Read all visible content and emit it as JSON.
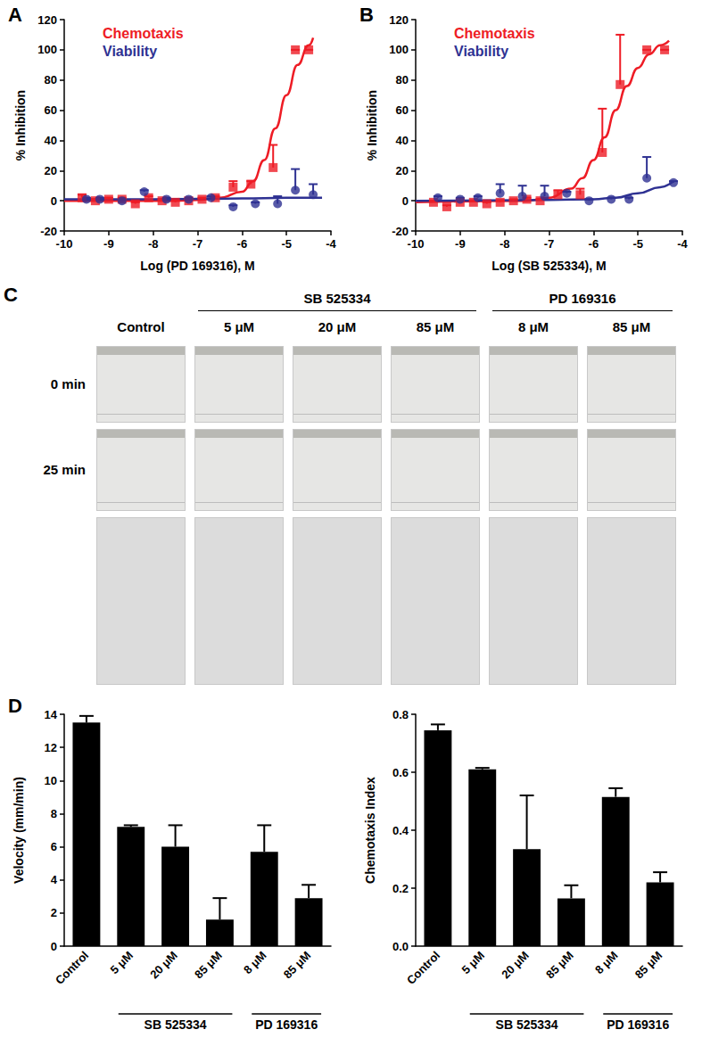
{
  "chart_data": [
    {
      "panel_label": "A",
      "type": "scatter",
      "x_label": "Log (PD 169316), M",
      "y_label": "% Inhibition",
      "xlim": [
        -10,
        -4
      ],
      "xticks": [
        -10,
        -9,
        -8,
        -7,
        -6,
        -5,
        -4
      ],
      "ylim": [
        -20,
        120
      ],
      "yticks": [
        -20,
        0,
        20,
        40,
        60,
        80,
        100,
        120
      ],
      "grid": false,
      "legend": "top-left",
      "series": [
        {
          "name": "Chemotaxis",
          "color": "#ee1c25",
          "marker": "square",
          "x": [
            -9.6,
            -9.3,
            -9.0,
            -8.7,
            -8.4,
            -8.1,
            -7.8,
            -7.5,
            -7.2,
            -6.9,
            -6.6,
            -6.2,
            -5.8,
            -5.3,
            -4.8,
            -4.5
          ],
          "values": [
            2,
            0,
            1,
            1,
            -2,
            2,
            0,
            -1,
            0,
            1,
            2,
            9,
            11,
            22,
            100,
            100
          ],
          "error": [
            2,
            1,
            1,
            1,
            1,
            1,
            1,
            1,
            1,
            1,
            1,
            4,
            2,
            15,
            0,
            0
          ],
          "fit": [
            [
              -10,
              0
            ],
            [
              -7.5,
              0
            ],
            [
              -7,
              0.5
            ],
            [
              -6.5,
              2
            ],
            [
              -6,
              6
            ],
            [
              -5.75,
              13
            ],
            [
              -5.5,
              27
            ],
            [
              -5.25,
              48
            ],
            [
              -5,
              70
            ],
            [
              -4.75,
              90
            ],
            [
              -4.5,
              103
            ],
            [
              -4.4,
              108
            ]
          ]
        },
        {
          "name": "Viability",
          "color": "#2e3192",
          "marker": "circle",
          "x": [
            -9.5,
            -9.2,
            -8.7,
            -8.2,
            -7.7,
            -7.2,
            -6.7,
            -6.2,
            -5.7,
            -5.2,
            -4.8,
            -4.4
          ],
          "values": [
            1,
            1,
            0,
            6,
            1,
            1,
            2,
            -4,
            -2,
            -2,
            7,
            4
          ],
          "error": [
            1,
            1,
            1,
            1,
            1,
            1,
            1,
            1,
            1,
            5,
            14,
            7
          ],
          "fit": [
            [
              -10,
              1
            ],
            [
              -8,
              1
            ],
            [
              -6,
              1.5
            ],
            [
              -5,
              2
            ],
            [
              -4.2,
              2
            ]
          ]
        }
      ]
    },
    {
      "panel_label": "B",
      "type": "scatter",
      "x_label": "Log (SB 525334), M",
      "y_label": "% Inhibition",
      "xlim": [
        -10,
        -4
      ],
      "xticks": [
        -10,
        -9,
        -8,
        -7,
        -6,
        -5,
        -4
      ],
      "ylim": [
        -20,
        120
      ],
      "yticks": [
        -20,
        0,
        20,
        40,
        60,
        80,
        100,
        120
      ],
      "grid": false,
      "legend": "top-left",
      "series": [
        {
          "name": "Chemotaxis",
          "color": "#ee1c25",
          "marker": "square",
          "x": [
            -9.6,
            -9.3,
            -9.0,
            -8.7,
            -8.4,
            -8.1,
            -7.8,
            -7.5,
            -7.2,
            -6.8,
            -6.3,
            -5.8,
            -5.4,
            -4.8,
            -4.4
          ],
          "values": [
            -1,
            -4,
            -1,
            -1,
            -2,
            -1,
            0,
            1,
            0,
            4,
            4,
            32,
            77,
            100,
            100
          ],
          "error": [
            1,
            1,
            1,
            1,
            1,
            1,
            1,
            1,
            1,
            3,
            4,
            29,
            33,
            0,
            0
          ],
          "fit": [
            [
              -10,
              -1
            ],
            [
              -7.5,
              0
            ],
            [
              -7,
              2
            ],
            [
              -6.5,
              8
            ],
            [
              -6.25,
              15
            ],
            [
              -6,
              27
            ],
            [
              -5.75,
              42
            ],
            [
              -5.5,
              60
            ],
            [
              -5.25,
              76
            ],
            [
              -5,
              88
            ],
            [
              -4.75,
              97
            ],
            [
              -4.5,
              103
            ],
            [
              -4.3,
              106
            ]
          ]
        },
        {
          "name": "Viability",
          "color": "#2e3192",
          "marker": "circle",
          "x": [
            -9.5,
            -9.0,
            -8.6,
            -8.1,
            -7.6,
            -7.1,
            -6.6,
            -6.1,
            -5.6,
            -5.2,
            -4.8,
            -4.2
          ],
          "values": [
            2,
            1,
            2,
            5,
            3,
            3,
            5,
            0,
            1,
            1,
            15,
            12
          ],
          "error": [
            1,
            1,
            1,
            6,
            7,
            7,
            1,
            1,
            1,
            1,
            14,
            1
          ],
          "fit": [
            [
              -10,
              0
            ],
            [
              -7,
              0.5
            ],
            [
              -6,
              1
            ],
            [
              -5.5,
              2
            ],
            [
              -5,
              5
            ],
            [
              -4.5,
              9
            ],
            [
              -4.2,
              13
            ]
          ]
        }
      ]
    },
    {
      "panel_label": "D",
      "type": "bar",
      "y_label": "Velocity (mm/min)",
      "categories": [
        "Control",
        "5 μM",
        "20 μM",
        "85 μM",
        "8 μM",
        "85 μM"
      ],
      "category_groups": [
        null,
        "SB 525334",
        "SB 525334",
        "SB 525334",
        "PD 169316",
        "PD 169316"
      ],
      "values": [
        13.5,
        7.2,
        6.0,
        1.6,
        5.7,
        2.9
      ],
      "error": [
        0.4,
        0.1,
        1.3,
        1.3,
        1.6,
        0.8
      ],
      "color": "#000000",
      "ylim": [
        0,
        14
      ],
      "yticks": [
        0,
        2,
        4,
        6,
        8,
        10,
        12,
        14
      ],
      "grid": false
    },
    {
      "type": "bar",
      "y_label": "Chemotaxis Index",
      "categories": [
        "Control",
        "5 μM",
        "20 μM",
        "85 μM",
        "8 μM",
        "85 μM"
      ],
      "category_groups": [
        null,
        "SB 525334",
        "SB 525334",
        "SB 525334",
        "PD 169316",
        "PD 169316"
      ],
      "values": [
        0.745,
        0.61,
        0.335,
        0.165,
        0.515,
        0.22
      ],
      "error": [
        0.02,
        0.005,
        0.185,
        0.045,
        0.03,
        0.035
      ],
      "color": "#000000",
      "ylim": [
        0,
        0.8
      ],
      "yticks": [
        {
          "value": 0,
          "label": "0.0"
        },
        0.2,
        0.4,
        0.6,
        0.8
      ],
      "grid": false
    }
  ],
  "panel_c": {
    "panel_label": "C",
    "columns": [
      {
        "label": "Control",
        "group": null
      },
      {
        "label": "5 μM",
        "group": "SB 525334"
      },
      {
        "label": "20 μM",
        "group": "SB 525334"
      },
      {
        "label": "85 μM",
        "group": "SB 525334"
      },
      {
        "label": "8 μM",
        "group": "PD 169316"
      },
      {
        "label": "85 μM",
        "group": "PD 169316"
      }
    ],
    "rows": [
      "0 min",
      "25 min"
    ]
  }
}
